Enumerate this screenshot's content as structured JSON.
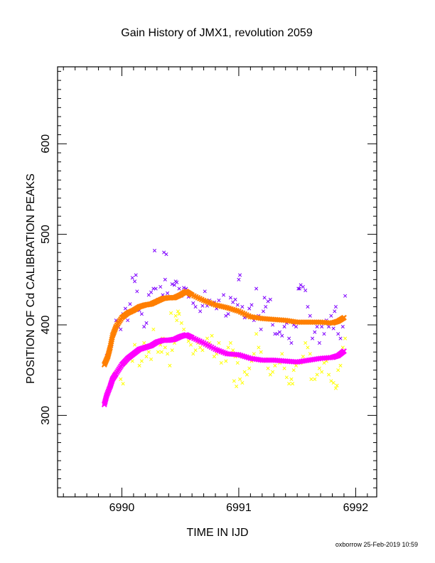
{
  "footer": "oxborrow 25-Feb-2019 10:59",
  "chart_data": {
    "type": "scatter",
    "title": "Gain History of JMX1, revolution 2059",
    "xlabel": "TIME IN IJD",
    "ylabel": "POSITION OF Cd CALIBRATION PEAKS",
    "xlim": [
      6989.45,
      6992.18
    ],
    "ylim": [
      210,
      685
    ],
    "xticks": [
      6990,
      6991,
      6992
    ],
    "xtick_labels": [
      "6990",
      "6991",
      "6992"
    ],
    "yticks": [
      300,
      400,
      500,
      600
    ],
    "ytick_labels": [
      "300",
      "400",
      "500",
      "600"
    ],
    "grid": false,
    "legend": "none",
    "colors": {
      "upper_raw": "#7f00ff",
      "upper_fit": "#ff7f00",
      "lower_raw": "#ffff00",
      "lower_fit": "#ff00ff"
    },
    "series": [
      {
        "key": "upper_fit",
        "marker": "x",
        "x": [
          6989.85,
          6989.88,
          6989.9,
          6989.92,
          6989.95,
          6990.0,
          6990.05,
          6990.1,
          6990.15,
          6990.2,
          6990.25,
          6990.3,
          6990.35,
          6990.4,
          6990.45,
          6990.5,
          6990.55,
          6990.6,
          6990.7,
          6990.8,
          6990.9,
          6991.0,
          6991.1,
          6991.2,
          6991.3,
          6991.4,
          6991.5,
          6991.6,
          6991.7,
          6991.8,
          6991.85,
          6991.9
        ],
        "y": [
          356,
          365,
          375,
          388,
          398,
          408,
          413,
          416,
          420,
          422,
          423,
          426,
          429,
          430,
          430,
          433,
          437,
          433,
          427,
          422,
          419,
          415,
          409,
          407,
          406,
          405,
          403,
          403,
          403,
          402,
          404,
          408
        ]
      },
      {
        "key": "lower_fit",
        "marker": "x",
        "x": [
          6989.85,
          6989.87,
          6989.9,
          6989.92,
          6989.95,
          6990.0,
          6990.05,
          6990.1,
          6990.15,
          6990.2,
          6990.25,
          6990.3,
          6990.35,
          6990.4,
          6990.45,
          6990.5,
          6990.55,
          6990.6,
          6990.7,
          6990.8,
          6990.9,
          6991.0,
          6991.1,
          6991.2,
          6991.3,
          6991.4,
          6991.5,
          6991.6,
          6991.7,
          6991.8,
          6991.85,
          6991.9
        ],
        "y": [
          312,
          322,
          332,
          340,
          346,
          356,
          363,
          368,
          373,
          375,
          377,
          381,
          383,
          383,
          384,
          387,
          389,
          386,
          380,
          373,
          368,
          367,
          363,
          361,
          361,
          360,
          359,
          361,
          363,
          364,
          366,
          371
        ]
      },
      {
        "key": "upper_raw",
        "marker": "x",
        "x": [
          6989.85,
          6989.87,
          6989.89,
          6989.91,
          6989.93,
          6989.95,
          6989.97,
          6989.99,
          6990.01,
          6990.03,
          6990.05,
          6990.07,
          6990.09,
          6990.11,
          6990.13,
          6990.15,
          6990.17,
          6990.19,
          6990.21,
          6990.23,
          6990.25,
          6990.27,
          6990.29,
          6990.31,
          6990.33,
          6990.35,
          6990.37,
          6990.39,
          6990.41,
          6990.43,
          6990.45,
          6990.47,
          6990.49,
          6990.51,
          6990.53,
          6990.55,
          6990.57,
          6990.59,
          6990.61,
          6990.63,
          6990.65,
          6990.67,
          6990.69,
          6990.71,
          6990.73,
          6990.75,
          6990.77,
          6990.79,
          6990.81,
          6990.83,
          6990.85,
          6990.87,
          6990.89,
          6990.91,
          6990.93,
          6990.95,
          6990.97,
          6990.99,
          6991.01,
          6991.03,
          6991.05,
          6991.07,
          6991.09,
          6991.11,
          6991.13,
          6991.15,
          6991.17,
          6991.19,
          6991.21,
          6991.23,
          6991.25,
          6991.27,
          6991.29,
          6991.31,
          6991.33,
          6991.35,
          6991.37,
          6991.39,
          6991.41,
          6991.43,
          6991.45,
          6991.47,
          6991.49,
          6991.51,
          6991.53,
          6991.55,
          6991.57,
          6991.59,
          6991.61,
          6991.63,
          6991.65,
          6991.67,
          6991.69,
          6991.71,
          6991.73,
          6991.75,
          6991.77,
          6991.79,
          6991.81,
          6991.83,
          6991.85,
          6991.87,
          6991.89,
          6991.91,
          6990.28,
          6990.36,
          6990.38,
          6990.12,
          6990.46,
          6991.0,
          6991.22,
          6991.52,
          6991.82
        ],
        "y": [
          357,
          366,
          372,
          378,
          390,
          405,
          398,
          395,
          412,
          418,
          405,
          423,
          452,
          448,
          437,
          416,
          412,
          398,
          402,
          433,
          436,
          440,
          440,
          428,
          442,
          433,
          450,
          435,
          430,
          445,
          444,
          447,
          440,
          432,
          441,
          440,
          431,
          434,
          424,
          420,
          430,
          415,
          421,
          437,
          421,
          427,
          423,
          425,
          418,
          427,
          420,
          433,
          410,
          412,
          430,
          425,
          428,
          422,
          455,
          420,
          408,
          410,
          418,
          422,
          405,
          440,
          410,
          395,
          415,
          420,
          426,
          428,
          400,
          390,
          390,
          392,
          388,
          398,
          402,
          385,
          380,
          400,
          398,
          440,
          444,
          442,
          438,
          420,
          410,
          385,
          392,
          398,
          380,
          398,
          390,
          405,
          398,
          410,
          396,
          420,
          390,
          385,
          398,
          432,
          482,
          480,
          478,
          455,
          448,
          450,
          430,
          440,
          415
        ]
      },
      {
        "key": "lower_raw",
        "marker": "x",
        "x": [
          6989.85,
          6989.87,
          6989.89,
          6989.91,
          6989.93,
          6989.95,
          6989.97,
          6989.99,
          6990.01,
          6990.03,
          6990.05,
          6990.07,
          6990.09,
          6990.11,
          6990.13,
          6990.15,
          6990.17,
          6990.19,
          6990.21,
          6990.23,
          6990.25,
          6990.27,
          6990.29,
          6990.31,
          6990.33,
          6990.35,
          6990.37,
          6990.39,
          6990.41,
          6990.43,
          6990.45,
          6990.47,
          6990.49,
          6990.51,
          6990.53,
          6990.55,
          6990.57,
          6990.59,
          6990.61,
          6990.63,
          6990.65,
          6990.67,
          6990.69,
          6990.71,
          6990.73,
          6990.75,
          6990.77,
          6990.79,
          6990.81,
          6990.83,
          6990.85,
          6990.87,
          6990.89,
          6990.91,
          6990.93,
          6990.95,
          6990.97,
          6990.99,
          6991.01,
          6991.03,
          6991.05,
          6991.07,
          6991.09,
          6991.11,
          6991.13,
          6991.15,
          6991.17,
          6991.19,
          6991.21,
          6991.23,
          6991.25,
          6991.27,
          6991.29,
          6991.31,
          6991.33,
          6991.35,
          6991.37,
          6991.39,
          6991.41,
          6991.43,
          6991.45,
          6991.47,
          6991.49,
          6991.51,
          6991.53,
          6991.55,
          6991.57,
          6991.59,
          6991.61,
          6991.63,
          6991.65,
          6991.67,
          6991.69,
          6991.71,
          6991.73,
          6991.75,
          6991.77,
          6991.79,
          6991.81,
          6991.83,
          6991.85,
          6991.87,
          6991.89,
          6991.91,
          6990.42,
          6990.46,
          6990.48,
          6990.34,
          6990.96,
          6990.98,
          6991.46,
          6991.62,
          6991.84
        ],
        "y": [
          314,
          320,
          330,
          338,
          345,
          348,
          352,
          340,
          335,
          358,
          362,
          365,
          360,
          378,
          372,
          355,
          360,
          380,
          365,
          370,
          362,
          395,
          380,
          370,
          378,
          385,
          375,
          368,
          355,
          372,
          380,
          405,
          412,
          402,
          395,
          388,
          382,
          378,
          368,
          372,
          380,
          375,
          372,
          378,
          385,
          380,
          388,
          365,
          368,
          380,
          358,
          370,
          360,
          375,
          380,
          372,
          365,
          358,
          340,
          336,
          348,
          345,
          352,
          360,
          368,
          390,
          375,
          370,
          360,
          362,
          352,
          345,
          348,
          355,
          360,
          358,
          368,
          352,
          342,
          335,
          340,
          350,
          355,
          360,
          358,
          365,
          380,
          375,
          368,
          362,
          340,
          345,
          352,
          348,
          358,
          360,
          345,
          338,
          336,
          330,
          350,
          355,
          375,
          385,
          413,
          410,
          415,
          370,
          338,
          332,
          335,
          340,
          333
        ]
      }
    ]
  }
}
